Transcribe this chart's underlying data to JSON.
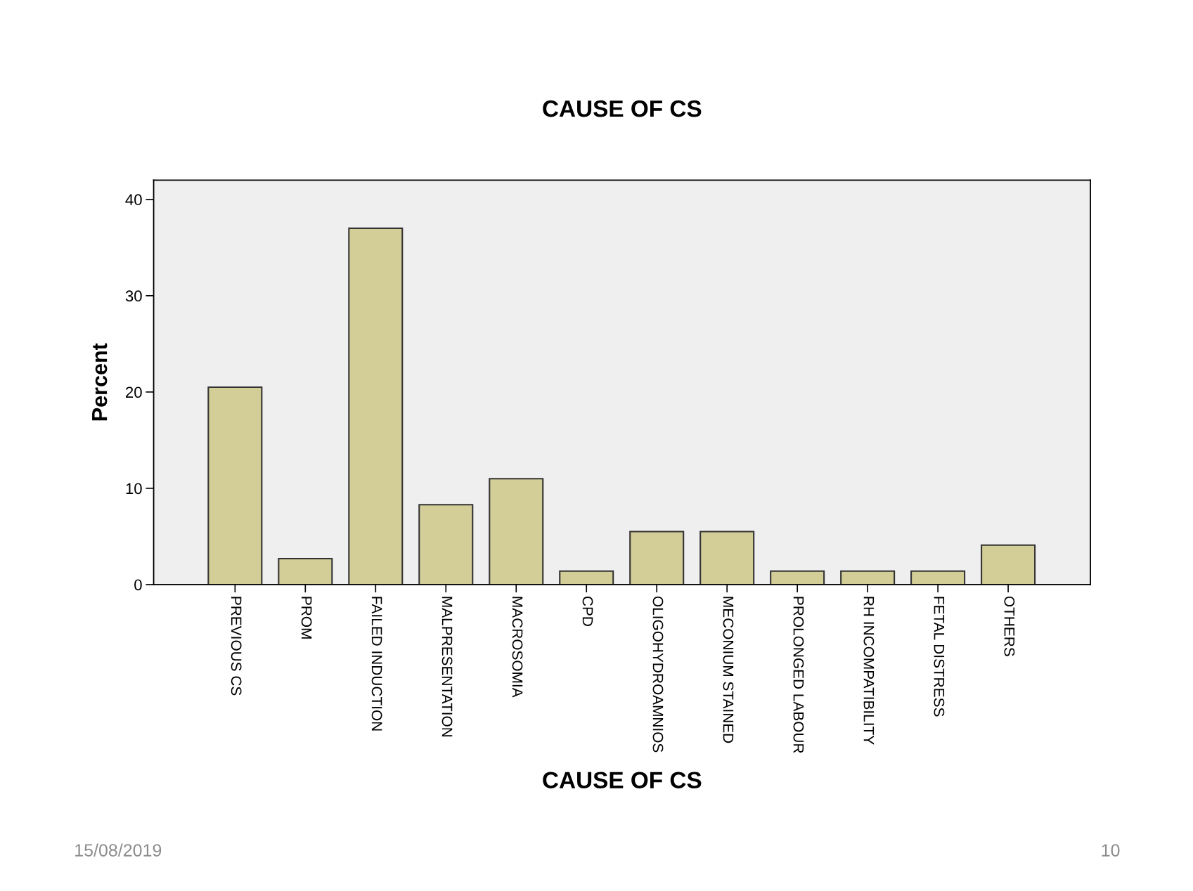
{
  "chart_data": {
    "type": "bar",
    "title": "CAUSE OF CS",
    "xlabel": "CAUSE OF CS",
    "ylabel": "Percent",
    "categories": [
      "PREVIOUS CS",
      "PROM",
      "FAILED INDUCTION",
      "MALPRESENTATION",
      "MACROSOMIA",
      "CPD",
      "OLIGOHYDROAMNIOS",
      "MECONIUM STAINED",
      "PROLONGED LABOUR",
      "RH INCOMPATIBILITY",
      "FETAL DISTRESS",
      "OTHERS"
    ],
    "values": [
      20.5,
      2.7,
      37.0,
      8.3,
      11.0,
      1.4,
      5.5,
      5.5,
      1.4,
      1.4,
      1.4,
      4.1
    ],
    "color": "#d3ce97",
    "ylim": [
      0,
      42
    ],
    "yticks": [
      0,
      10,
      20,
      30,
      40
    ],
    "grid": false,
    "annotations": [
      "15/08/2019",
      "10"
    ]
  }
}
